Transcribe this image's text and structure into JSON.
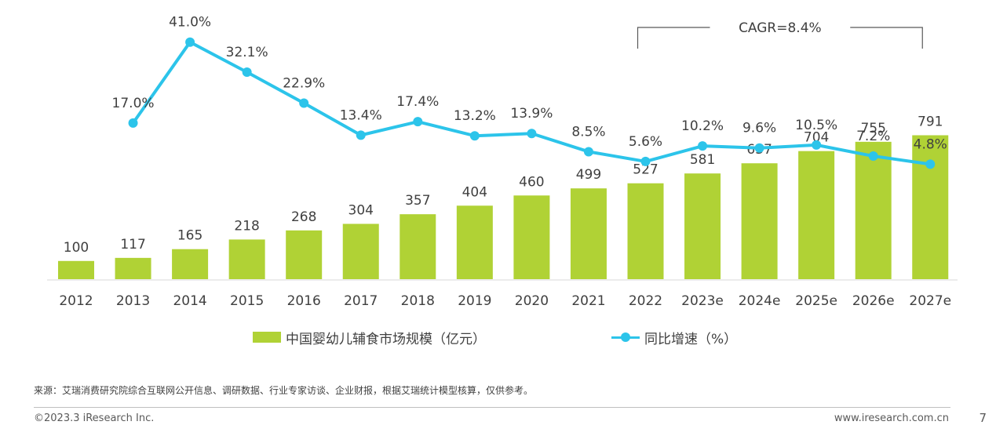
{
  "chart_data": {
    "type": "bar",
    "categories": [
      "2012",
      "2013",
      "2014",
      "2015",
      "2016",
      "2017",
      "2018",
      "2019",
      "2020",
      "2021",
      "2022",
      "2023e",
      "2024e",
      "2025e",
      "2026e",
      "2027e"
    ],
    "series": [
      {
        "name": "中国婴幼儿辅食市场规模（亿元）",
        "type": "bar",
        "color": "#b0d235",
        "values": [
          100,
          117,
          165,
          218,
          268,
          304,
          357,
          404,
          460,
          499,
          527,
          581,
          637,
          704,
          755,
          791
        ]
      },
      {
        "name": "同比增速（%）",
        "type": "line",
        "color": "#2cc4ea",
        "values": [
          null,
          17.0,
          41.0,
          32.1,
          22.9,
          13.4,
          17.4,
          13.2,
          13.9,
          8.5,
          5.6,
          10.2,
          9.6,
          10.5,
          7.2,
          4.8
        ],
        "labels": [
          "",
          "17.0%",
          "41.0%",
          "32.1%",
          "22.9%",
          "13.4%",
          "17.4%",
          "13.2%",
          "13.9%",
          "8.5%",
          "5.6%",
          "10.2%",
          "9.6%",
          "10.5%",
          "7.2%",
          "4.8%"
        ]
      }
    ],
    "annotation": {
      "text": "CAGR=8.4%",
      "from": "2022",
      "to": "2027e"
    },
    "legend_position": "bottom",
    "grid": false
  },
  "legend": {
    "bar_label": "中国婴幼儿辅食市场规模（亿元）",
    "line_label": "同比增速（%）"
  },
  "footer": {
    "source": "来源：艾瑞消费研究院综合互联网公开信息、调研数据、行业专家访谈、企业财报，根据艾瑞统计模型核算，仅供参考。",
    "copyright": "©2023.3 iResearch Inc.",
    "site": "www.iresearch.com.cn",
    "page": "7"
  }
}
